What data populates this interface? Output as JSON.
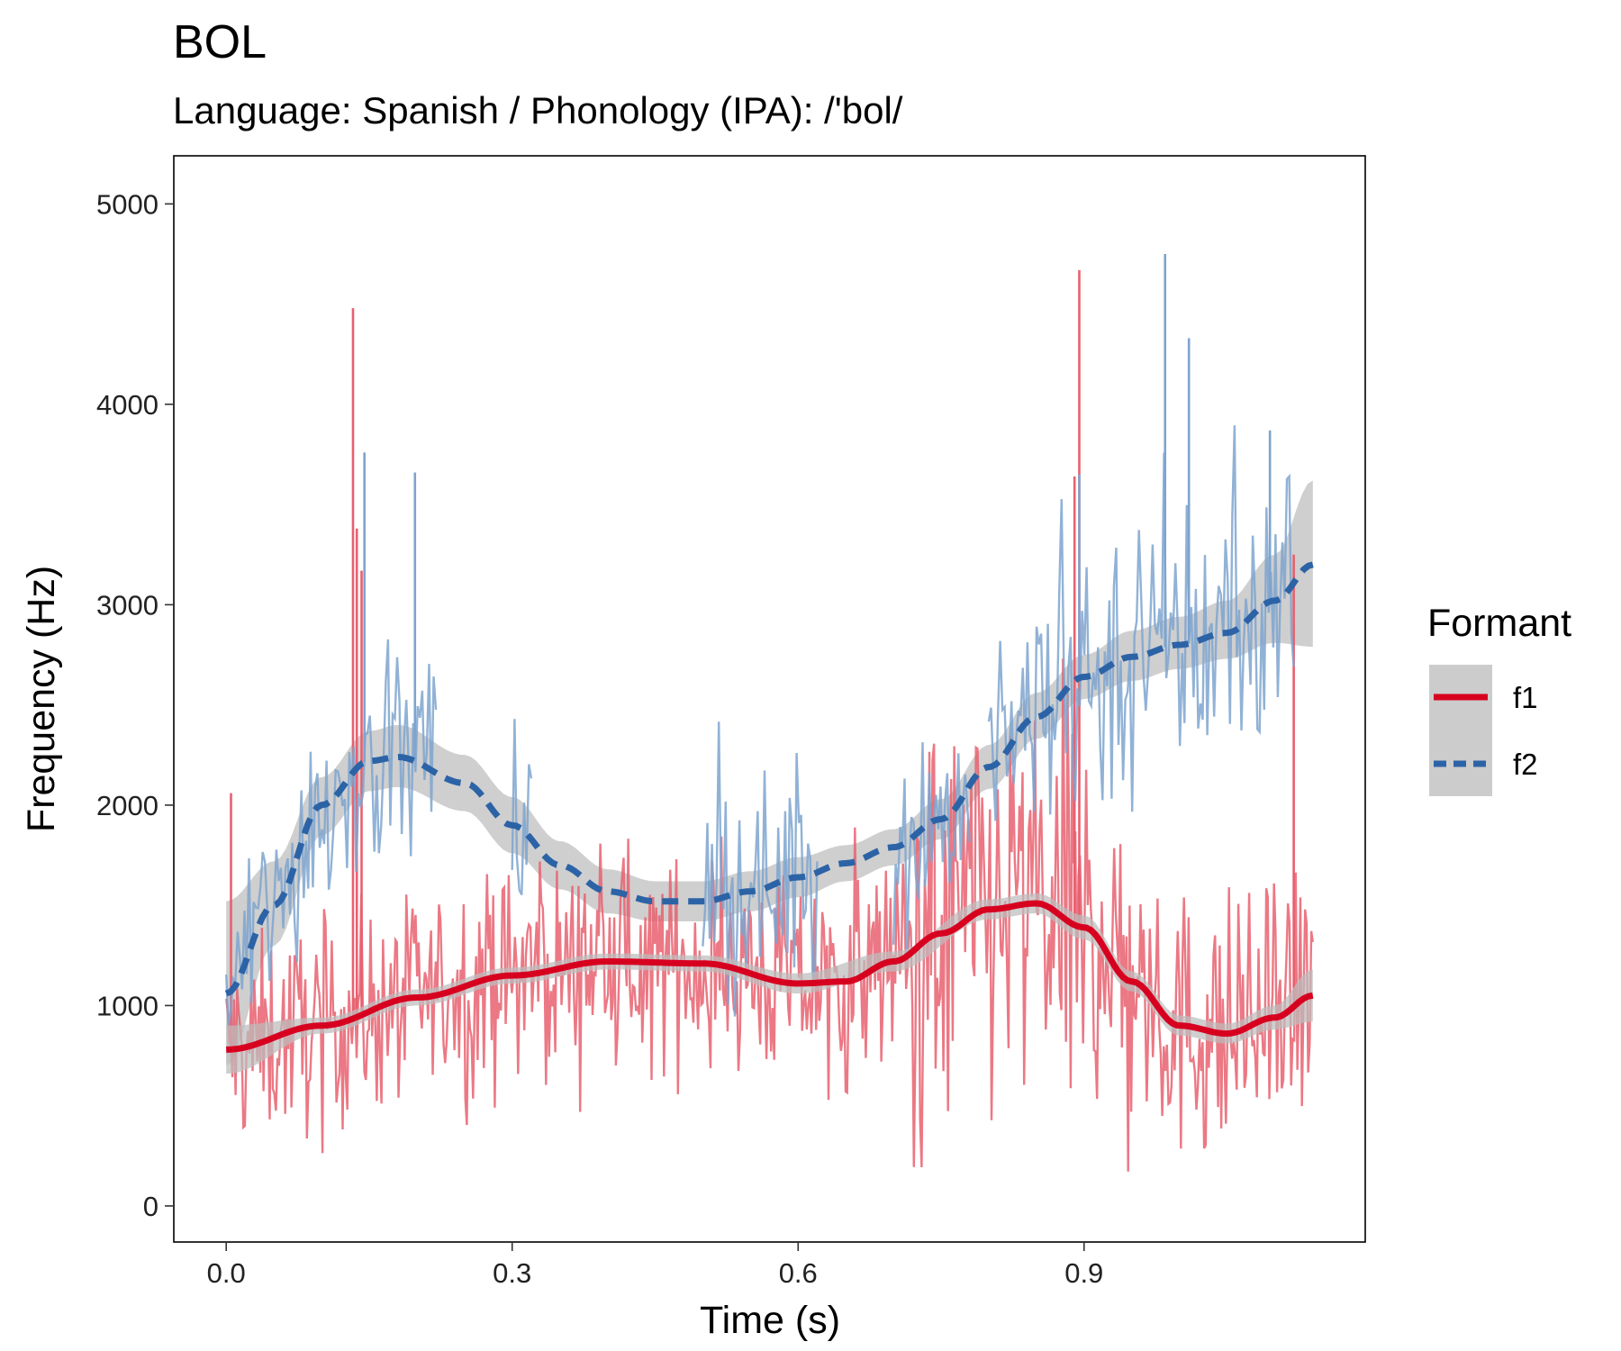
{
  "chart_data": {
    "type": "line",
    "title": "BOL",
    "subtitle": "Language: Spanish / Phonology (IPA): /'bol/",
    "xlabel": "Time (s)",
    "ylabel": "Frequency (Hz)",
    "xlim": [
      -0.055,
      1.195
    ],
    "ylim": [
      -180,
      5240
    ],
    "xticks": [
      0.0,
      0.3,
      0.6,
      0.9
    ],
    "xtick_labels": [
      "0.0",
      "0.3",
      "0.6",
      "0.9"
    ],
    "yticks": [
      0,
      1000,
      2000,
      3000,
      4000,
      5000
    ],
    "ytick_labels": [
      "0",
      "1000",
      "2000",
      "3000",
      "4000",
      "5000"
    ],
    "grid": false,
    "legend": {
      "title": "Formant",
      "position": "right",
      "entries": [
        "f1",
        "f2"
      ]
    },
    "colors": {
      "f1": "#d7001f",
      "f1_raw": "#e8606f",
      "f2": "#2c63a6",
      "f2_raw": "#7ea4cf",
      "band": "#bdbdbd"
    },
    "series": [
      {
        "name": "f1",
        "style": "solid",
        "smooth": {
          "x": [
            0.0,
            0.1,
            0.2,
            0.3,
            0.4,
            0.5,
            0.6,
            0.65,
            0.7,
            0.75,
            0.8,
            0.85,
            0.9,
            0.95,
            1.0,
            1.05,
            1.1,
            1.14
          ],
          "y": [
            780,
            900,
            1040,
            1150,
            1220,
            1210,
            1110,
            1120,
            1220,
            1360,
            1480,
            1510,
            1390,
            1120,
            900,
            860,
            940,
            1050
          ]
        },
        "band": {
          "x": [
            0.0,
            0.1,
            0.2,
            0.3,
            0.4,
            0.5,
            0.6,
            0.7,
            0.8,
            0.85,
            0.9,
            0.95,
            1.0,
            1.05,
            1.1,
            1.14
          ],
          "lower": [
            660,
            860,
            1000,
            1110,
            1180,
            1170,
            1060,
            1170,
            1430,
            1460,
            1330,
            1070,
            850,
            810,
            880,
            920
          ],
          "upper": [
            900,
            940,
            1080,
            1190,
            1260,
            1250,
            1160,
            1270,
            1530,
            1560,
            1450,
            1170,
            950,
            910,
            1000,
            1180
          ]
        },
        "raw_range": {
          "x": [
            0.0,
            1.14
          ],
          "y": [
            50,
            4670
          ]
        },
        "raw_peaks": [
          {
            "x": 0.005,
            "y": 2060
          },
          {
            "x": 0.133,
            "y": 4480
          },
          {
            "x": 0.137,
            "y": 3380
          },
          {
            "x": 0.142,
            "y": 3170
          },
          {
            "x": 0.895,
            "y": 4670
          },
          {
            "x": 0.89,
            "y": 3640
          },
          {
            "x": 1.12,
            "y": 3250
          }
        ]
      },
      {
        "name": "f2",
        "style": "dashed",
        "smooth": {
          "x": [
            0.0,
            0.05,
            0.1,
            0.15,
            0.18,
            0.25,
            0.3,
            0.35,
            0.4,
            0.45,
            0.5,
            0.55,
            0.6,
            0.65,
            0.7,
            0.75,
            0.8,
            0.85,
            0.9,
            0.95,
            1.0,
            1.05,
            1.1,
            1.14
          ],
          "y": [
            1060,
            1500,
            2000,
            2220,
            2240,
            2110,
            1900,
            1700,
            1570,
            1520,
            1520,
            1570,
            1640,
            1710,
            1790,
            1930,
            2190,
            2440,
            2640,
            2740,
            2800,
            2860,
            3020,
            3200
          ]
        },
        "band": {
          "x": [
            0.0,
            0.05,
            0.1,
            0.15,
            0.18,
            0.25,
            0.3,
            0.35,
            0.4,
            0.45,
            0.5,
            0.55,
            0.6,
            0.65,
            0.7,
            0.75,
            0.8,
            0.85,
            0.9,
            0.95,
            1.0,
            1.05,
            1.1,
            1.14
          ],
          "lower": [
            700,
            1300,
            1850,
            2070,
            2090,
            1970,
            1760,
            1580,
            1460,
            1420,
            1420,
            1470,
            1540,
            1620,
            1700,
            1830,
            2080,
            2330,
            2530,
            2620,
            2680,
            2730,
            2810,
            2790
          ],
          "upper": [
            1520,
            1720,
            2140,
            2370,
            2400,
            2250,
            2040,
            1820,
            1680,
            1620,
            1620,
            1670,
            1740,
            1800,
            1880,
            2030,
            2300,
            2560,
            2750,
            2870,
            2940,
            3020,
            3250,
            3620
          ]
        },
        "raw_range": {
          "x": [
            0.0,
            1.12
          ],
          "y": [
            900,
            4750
          ]
        },
        "raw_peaks": [
          {
            "x": 0.145,
            "y": 3760
          },
          {
            "x": 0.198,
            "y": 3660
          },
          {
            "x": 0.985,
            "y": 4750
          },
          {
            "x": 1.01,
            "y": 4330
          },
          {
            "x": 1.095,
            "y": 3870
          },
          {
            "x": 0.895,
            "y": 3650
          }
        ]
      }
    ]
  }
}
